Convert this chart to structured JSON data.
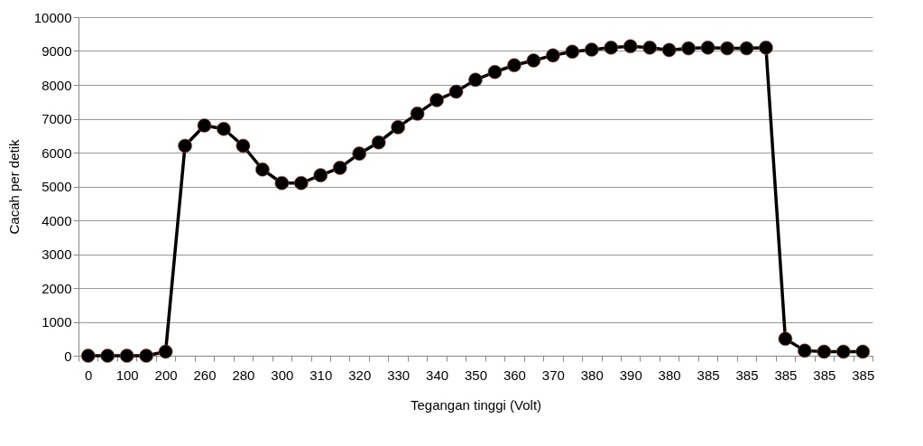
{
  "chart_data": {
    "type": "line",
    "xlabel": "Tegangan tinggi (Volt)",
    "ylabel": "Cacah per detik",
    "categories": [
      "0",
      null,
      "100",
      null,
      "200",
      null,
      "260",
      null,
      "280",
      null,
      "300",
      null,
      "310",
      null,
      "320",
      null,
      "330",
      null,
      "340",
      null,
      "350",
      null,
      "360",
      null,
      "370",
      null,
      "380",
      null,
      "390",
      null,
      "380",
      null,
      "385",
      null,
      "385",
      null,
      "385",
      null,
      "385",
      null,
      "385"
    ],
    "series": [
      {
        "color": "#000000",
        "values": [
          0,
          0,
          0,
          0,
          120,
          6200,
          6800,
          6700,
          6200,
          5500,
          5100,
          5100,
          5330,
          5550,
          5970,
          6300,
          6750,
          7150,
          7550,
          7800,
          8150,
          8380,
          8580,
          8720,
          8870,
          8980,
          9040,
          9100,
          9140,
          9100,
          9030,
          9080,
          9100,
          9080,
          9080,
          9100,
          500,
          150,
          120,
          120,
          120
        ]
      }
    ],
    "ylim": [
      0,
      10000
    ],
    "yticks": [
      0,
      1000,
      2000,
      3000,
      4000,
      5000,
      6000,
      7000,
      8000,
      9000,
      10000
    ],
    "grid": "y",
    "marker": "circle",
    "line_style": "solid"
  }
}
